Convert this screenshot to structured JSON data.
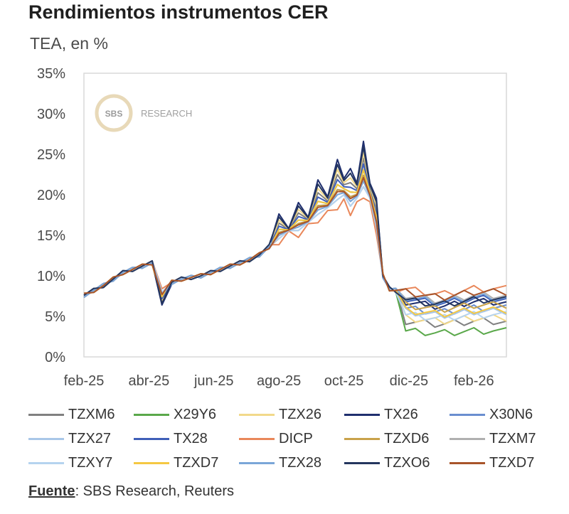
{
  "header": {
    "title": "Rendimientos instrumentos CER",
    "subtitle": "TEA, en %"
  },
  "watermark": {
    "logo": "SBS",
    "label": "RESEARCH"
  },
  "source": {
    "label": "Fuente",
    "text": ": SBS Research, Reuters"
  },
  "chart_data": {
    "type": "line",
    "title": "Rendimientos instrumentos CER",
    "ylabel": "TEA, en %",
    "xlabel": "",
    "ylim": [
      0,
      35
    ],
    "xlim": [
      0,
      13
    ],
    "grid": false,
    "legend_position": "bottom",
    "yticks": [
      0,
      5,
      10,
      15,
      20,
      25,
      30,
      35
    ],
    "ytick_labels": [
      "0%",
      "5%",
      "10%",
      "15%",
      "20%",
      "25%",
      "30%",
      "35%"
    ],
    "xticks": [
      0,
      2,
      4,
      6,
      8,
      10,
      12
    ],
    "xtick_labels": [
      "feb-25",
      "abr-25",
      "jun-25",
      "ago-25",
      "oct-25",
      "dic-25",
      "feb-26"
    ],
    "base_x": [
      0,
      0.3,
      0.6,
      0.9,
      1.2,
      1.5,
      1.8,
      2.1,
      2.4,
      2.7,
      3.0,
      3.3,
      3.6,
      3.9,
      4.2,
      4.5,
      4.8,
      5.1,
      5.4,
      5.7,
      6.0,
      6.3,
      6.6,
      6.9,
      7.2,
      7.5,
      7.8,
      8.0,
      8.2,
      8.4,
      8.6,
      8.8,
      9.0,
      9.2,
      9.4,
      9.6,
      9.9,
      10.2,
      10.5,
      10.8,
      11.1,
      11.4,
      11.7,
      12.0,
      12.3,
      12.6,
      13.0
    ],
    "base_y": [
      7.6,
      8.2,
      8.8,
      9.6,
      10.4,
      10.8,
      11.2,
      11.6,
      8.0,
      9.2,
      9.6,
      9.8,
      10.0,
      10.4,
      10.8,
      11.2,
      11.6,
      12.0,
      12.6,
      13.6,
      14.6,
      15.6,
      15.6,
      16.6,
      17.6,
      18.4,
      19.4,
      20.0,
      18.6,
      19.6,
      21.0,
      19.6,
      16.0,
      10.0,
      8.4,
      8.2,
      8.0,
      7.8,
      7.6,
      7.4,
      7.4,
      7.6,
      7.8,
      8.0,
      8.0,
      8.0,
      8.0
    ],
    "series": [
      {
        "name": "TZXM6",
        "color": "#808080",
        "spike": 1.25,
        "tail": 0.55
      },
      {
        "name": "X29Y6",
        "color": "#5aa84a",
        "spike": 1.15,
        "tail": 0.4
      },
      {
        "name": "TZX26",
        "color": "#f2d98a",
        "spike": 1.3,
        "tail": 0.6
      },
      {
        "name": "TX26",
        "color": "#1f2f6e",
        "spike": 1.4,
        "tail": 0.85
      },
      {
        "name": "X30N6",
        "color": "#6a8ed0",
        "spike": 1.1,
        "tail": 0.75
      },
      {
        "name": "TZX27",
        "color": "#a9c7e8",
        "spike": 1.05,
        "tail": 0.7
      },
      {
        "name": "TX28",
        "color": "#3f5fb8",
        "spike": 1.2,
        "tail": 0.9
      },
      {
        "name": "DICP",
        "color": "#e9875a",
        "spike": 0.9,
        "tail": 1.05
      },
      {
        "name": "TZXD6",
        "color": "#c9a24a",
        "spike": 1.1,
        "tail": 0.8
      },
      {
        "name": "TZXM7",
        "color": "#b0b0b0",
        "spike": 1.0,
        "tail": 0.95
      },
      {
        "name": "TZXY7",
        "color": "#b5d3ef",
        "spike": 1.0,
        "tail": 0.65
      },
      {
        "name": "TZXD7",
        "color": "#f5c842",
        "spike": 1.15,
        "tail": 0.72
      },
      {
        "name": "TZX28",
        "color": "#7aa6d8",
        "spike": 1.05,
        "tail": 0.92
      },
      {
        "name": "TZXO6",
        "color": "#24365e",
        "spike": 1.35,
        "tail": 0.88
      },
      {
        "name": "TZXD7",
        "color": "#a8542a",
        "spike": 1.08,
        "tail": 1.0
      }
    ]
  }
}
